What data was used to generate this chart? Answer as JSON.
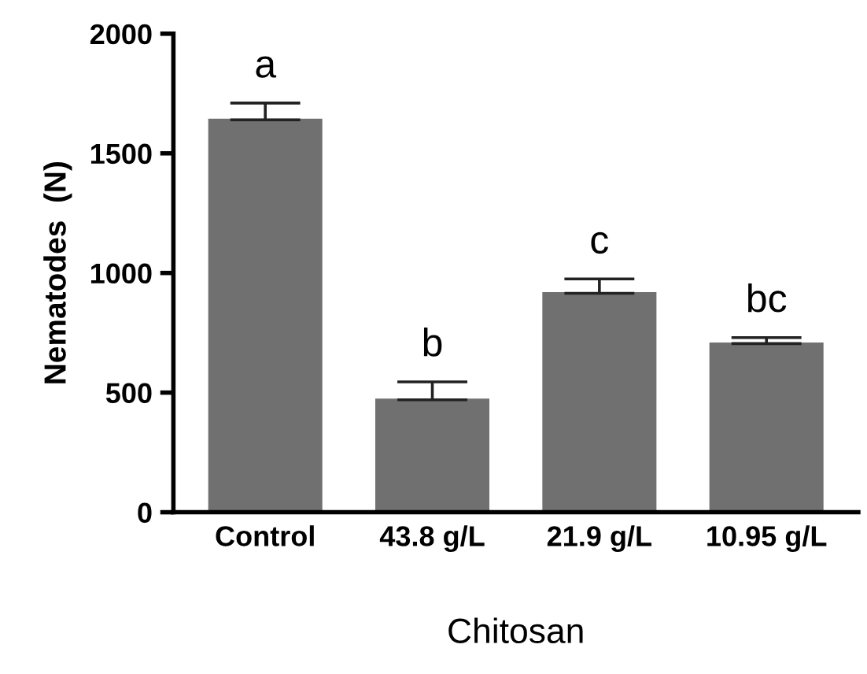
{
  "chart_data": {
    "type": "bar",
    "xlabel": "Chitosan",
    "ylabel": "Nematodes  (N)",
    "categories": [
      "Control",
      "43.8 g/L",
      "21.9 g/L",
      "10.95 g/L"
    ],
    "values": [
      1640,
      470,
      915,
      705
    ],
    "errors": [
      [
        1640,
        1710
      ],
      [
        470,
        545
      ],
      [
        915,
        975
      ],
      [
        705,
        730
      ]
    ],
    "color": "#707070",
    "ylim": [
      0,
      2000
    ],
    "yticks": [
      0,
      500,
      1000,
      1500,
      2000
    ],
    "grid": false,
    "legend": false,
    "annotations": [
      {
        "text": "a",
        "x": "Control",
        "y": 1710
      },
      {
        "text": "b",
        "x": "43.8 g/L",
        "y": 545
      },
      {
        "text": "c",
        "x": "21.9 g/L",
        "y": 975
      },
      {
        "text": "bc",
        "x": "10.95 g/L",
        "y": 730
      }
    ]
  }
}
